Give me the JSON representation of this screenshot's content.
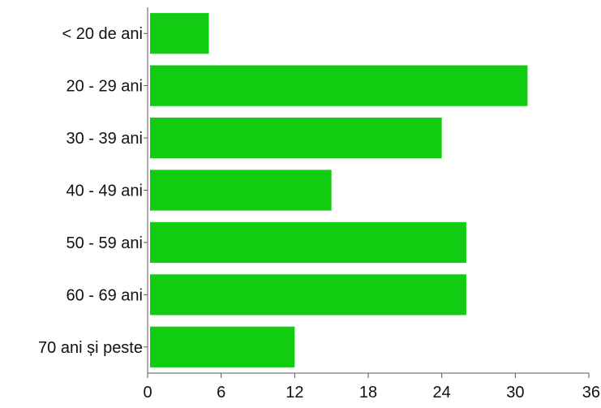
{
  "chart_data": {
    "type": "bar",
    "orientation": "horizontal",
    "title": "",
    "xlabel": "",
    "ylabel": "",
    "categories": [
      "< 20 de ani",
      "20 - 29 ani",
      "30 - 39 ani",
      "40 - 49 ani",
      "50 - 59 ani",
      "60 - 69 ani",
      "70 ani și peste"
    ],
    "values": [
      5,
      31,
      24,
      15,
      26,
      26,
      12
    ],
    "xlim": [
      0,
      36
    ],
    "xticks": [
      0,
      6,
      12,
      18,
      24,
      30,
      36
    ],
    "grid": false,
    "legend": "none",
    "bar_color": "#11cc11",
    "axis_color": "#555555",
    "text_color": "#111111"
  }
}
